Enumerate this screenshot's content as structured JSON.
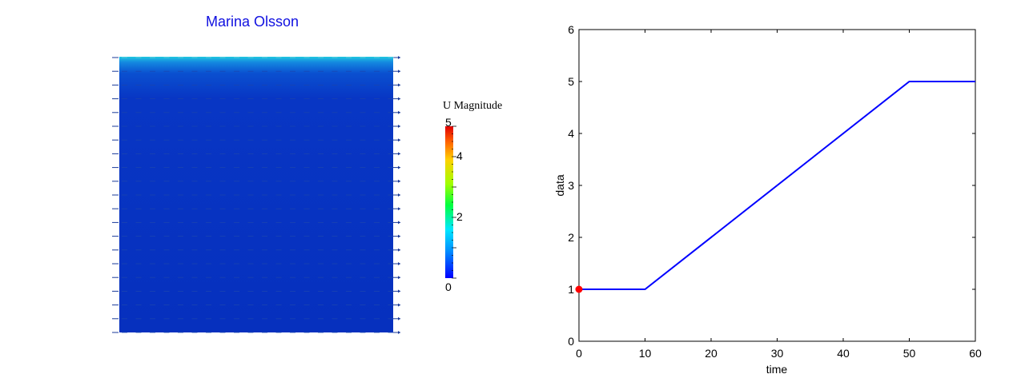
{
  "field_plot": {
    "title": "Marina Olsson",
    "colorbar": {
      "title": "U Magnitude",
      "min": 0,
      "max": 5,
      "ticks": [
        {
          "label": "5",
          "value": 5
        },
        {
          "label": "4",
          "value": 4
        },
        {
          "label": "2",
          "value": 2
        },
        {
          "label": "0",
          "value": 0
        }
      ]
    }
  },
  "chart_data": {
    "type": "line",
    "title": "",
    "xlabel": "time",
    "ylabel": "data",
    "xlim": [
      0,
      60
    ],
    "ylim": [
      0,
      6
    ],
    "xticks": [
      0,
      10,
      20,
      30,
      40,
      50,
      60
    ],
    "yticks": [
      0,
      1,
      2,
      3,
      4,
      5,
      6
    ],
    "series": [
      {
        "x": [
          0,
          10,
          50,
          60
        ],
        "y": [
          1,
          1,
          5,
          5
        ],
        "color": "#0000ff"
      }
    ],
    "marker": {
      "x": 0,
      "y": 1,
      "color": "#ff0000"
    },
    "grid": false
  }
}
